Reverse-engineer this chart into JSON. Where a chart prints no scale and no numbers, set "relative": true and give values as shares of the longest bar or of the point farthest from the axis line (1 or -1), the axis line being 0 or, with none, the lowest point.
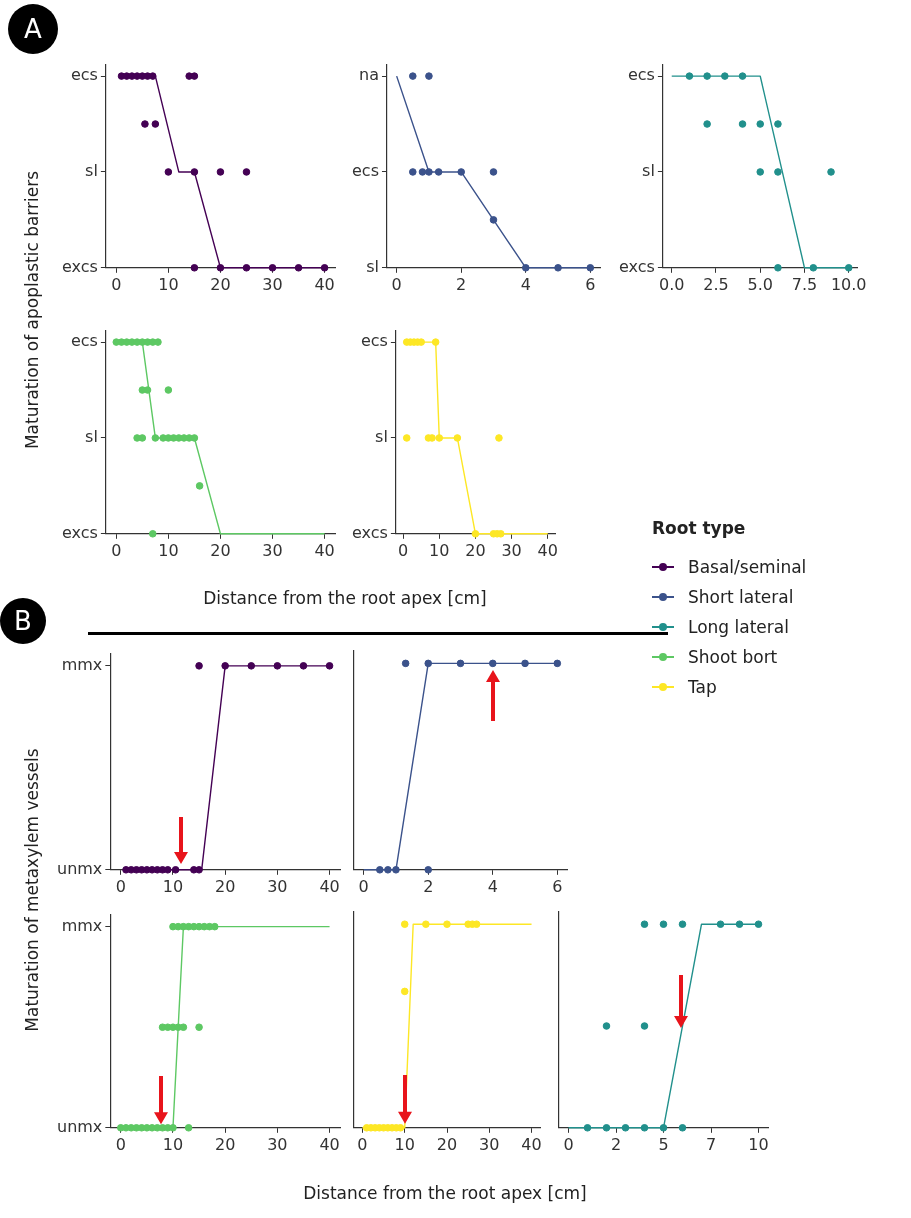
{
  "chart_data": [
    {
      "type": "scatter",
      "relative": true,
      "title": "A",
      "annotations": [
        "excs",
        "sl",
        "ecs"
      ],
      "ylabel": "Maturation of apoplastic barriers",
      "marker": "circle",
      "xlim": [
        -2,
        42
      ],
      "xticks": [
        0,
        10,
        20,
        30,
        40
      ],
      "series": [
        {
          "name": "Basal/seminal",
          "type": "scatter",
          "color": "#440154",
          "x": [
            1,
            2,
            3,
            4,
            5,
            6,
            7,
            14,
            15,
            5.5,
            7.5,
            10,
            15,
            20,
            25,
            15,
            20,
            25,
            30,
            35,
            40
          ],
          "values": [
            1,
            1,
            1,
            1,
            1,
            1,
            1,
            1,
            1,
            0.75,
            0.75,
            0.5,
            0.5,
            0.5,
            0.5,
            0,
            0,
            0,
            0,
            0,
            0
          ]
        },
        {
          "type": "line",
          "marker": "none",
          "color": "#440154",
          "x": [
            1,
            7.5,
            12,
            15,
            20,
            40
          ],
          "values": [
            1,
            1,
            0.5,
            0.5,
            0,
            0
          ]
        }
      ]
    },
    {
      "type": "scatter",
      "relative": true,
      "annotations": [
        "sl",
        "ecs",
        "na"
      ],
      "marker": "circle",
      "xlim": [
        -0.3,
        6.3
      ],
      "xticks": [
        0,
        2,
        4,
        6
      ],
      "series": [
        {
          "name": "Short lateral",
          "type": "scatter",
          "color": "#3b528b",
          "x": [
            0.5,
            1,
            0.5,
            0.8,
            1,
            1.3,
            2,
            3,
            3,
            4,
            5,
            6
          ],
          "values": [
            1,
            1,
            0.5,
            0.5,
            0.5,
            0.5,
            0.5,
            0.5,
            0.25,
            0,
            0,
            0
          ]
        },
        {
          "type": "line",
          "marker": "none",
          "color": "#3b528b",
          "x": [
            0,
            1,
            2,
            4,
            6
          ],
          "values": [
            1,
            0.5,
            0.5,
            0,
            0
          ]
        }
      ]
    },
    {
      "type": "scatter",
      "relative": true,
      "annotations": [
        "excs",
        "sl",
        "ecs"
      ],
      "marker": "circle",
      "xlim": [
        -0.5,
        10.5
      ],
      "xticks": [
        {
          "value": 0,
          "label": "0.0"
        },
        {
          "value": 2.5,
          "label": "2.5"
        },
        {
          "value": 5,
          "label": "5.0"
        },
        {
          "value": 7.5,
          "label": "7.5"
        },
        {
          "value": 10,
          "label": "10.0"
        }
      ],
      "series": [
        {
          "name": "Long lateral",
          "type": "scatter",
          "color": "#21908c",
          "x": [
            1,
            2,
            3,
            4,
            2,
            4,
            5,
            6,
            5,
            6,
            9,
            6,
            8,
            10
          ],
          "values": [
            1,
            1,
            1,
            1,
            0.75,
            0.75,
            0.75,
            0.75,
            0.5,
            0.5,
            0.5,
            0,
            0,
            0
          ]
        },
        {
          "type": "line",
          "marker": "none",
          "color": "#21908c",
          "x": [
            0,
            5,
            7.5,
            10
          ],
          "values": [
            1,
            1,
            0,
            0
          ]
        }
      ]
    },
    {
      "type": "scatter",
      "relative": true,
      "annotations": [
        "excs",
        "sl",
        "ecs"
      ],
      "xlabel": "Distance from the root apex [cm]",
      "marker": "circle",
      "xlim": [
        -2,
        42
      ],
      "xticks": [
        0,
        10,
        20,
        30,
        40
      ],
      "series": [
        {
          "name": "Shoot bort",
          "type": "scatter",
          "color": "#5dc863",
          "x": [
            0,
            1,
            2,
            3,
            4,
            5,
            6,
            7,
            8,
            5,
            6,
            10,
            4,
            5,
            7.5,
            9,
            10,
            11,
            12,
            13,
            14,
            15,
            16,
            7
          ],
          "values": [
            1,
            1,
            1,
            1,
            1,
            1,
            1,
            1,
            1,
            0.75,
            0.75,
            0.75,
            0.5,
            0.5,
            0.5,
            0.5,
            0.5,
            0.5,
            0.5,
            0.5,
            0.5,
            0.5,
            0.25,
            0
          ]
        },
        {
          "type": "line",
          "marker": "none",
          "color": "#5dc863",
          "x": [
            5,
            7.5,
            15,
            20,
            40
          ],
          "values": [
            1,
            0.5,
            0.5,
            0,
            0
          ]
        }
      ]
    },
    {
      "type": "scatter",
      "relative": true,
      "annotations": [
        "excs",
        "sl",
        "ecs"
      ],
      "marker": "circle",
      "xlim": [
        -2,
        42
      ],
      "xticks": [
        0,
        10,
        20,
        30,
        40
      ],
      "series": [
        {
          "name": "Tap",
          "type": "scatter",
          "color": "#fde725",
          "x": [
            1,
            2,
            3,
            4,
            5,
            9,
            1,
            7,
            8,
            10,
            15,
            26.5,
            20,
            25,
            26,
            27
          ],
          "values": [
            1,
            1,
            1,
            1,
            1,
            1,
            0.5,
            0.5,
            0.5,
            0.5,
            0.5,
            0.5,
            0,
            0,
            0,
            0
          ]
        },
        {
          "type": "line",
          "marker": "none",
          "color": "#fde725",
          "x": [
            1,
            9,
            10,
            15,
            20,
            40
          ],
          "values": [
            1,
            1,
            0.5,
            0.5,
            0,
            0
          ]
        }
      ]
    },
    {
      "type": "scatter",
      "relative": true,
      "title": "B",
      "annotations": [
        "unmx",
        "mmx"
      ],
      "ylabel": "Maturation of metaxylem vessels",
      "marker": "circle",
      "xlim": [
        -2,
        42
      ],
      "xticks": [
        0,
        10,
        20,
        30,
        40
      ],
      "series": [
        {
          "name": "Basal/seminal",
          "type": "scatter",
          "color": "#440154",
          "x": [
            15,
            20,
            25,
            30,
            35,
            40,
            1,
            2,
            3,
            4,
            5,
            6,
            7,
            8,
            9,
            10.5,
            14,
            15
          ],
          "values": [
            1,
            1,
            1,
            1,
            1,
            1,
            0,
            0,
            0,
            0,
            0,
            0,
            0,
            0,
            0,
            0,
            0,
            0
          ]
        },
        {
          "type": "line",
          "marker": "none",
          "color": "#440154",
          "x": [
            1,
            15.5,
            20,
            40
          ],
          "values": [
            0,
            0,
            1,
            1
          ]
        }
      ]
    },
    {
      "type": "scatter",
      "relative": true,
      "legend_title": "Root type",
      "legend": "right",
      "marker": "circle",
      "xlim": [
        -0.3,
        6.3
      ],
      "xticks": [
        0,
        2,
        4,
        6
      ],
      "series": [
        {
          "name": "Short lateral",
          "type": "scatter",
          "color": "#3b528b",
          "x": [
            1.3,
            2,
            3,
            4,
            5,
            6,
            0.5,
            0.75,
            1,
            2
          ],
          "values": [
            1,
            1,
            1,
            1,
            1,
            1,
            0,
            0,
            0,
            0
          ]
        },
        {
          "type": "line",
          "marker": "none",
          "color": "#3b528b",
          "x": [
            0,
            1,
            2,
            6
          ],
          "values": [
            0,
            0,
            1,
            1
          ]
        }
      ]
    },
    {
      "type": "scatter",
      "relative": true,
      "annotations": [
        "unmx",
        "mmx"
      ],
      "xlabel": "Distance from the root apex [cm]",
      "marker": "circle",
      "xlim": [
        -2,
        42
      ],
      "xticks": [
        0,
        10,
        20,
        30,
        40
      ],
      "series": [
        {
          "name": "Shoot bort",
          "type": "scatter",
          "color": "#5dc863",
          "x": [
            10,
            11,
            12,
            13,
            14,
            15,
            16,
            17,
            18,
            8,
            9,
            10,
            11,
            12,
            15,
            0,
            1,
            2,
            3,
            4,
            5,
            6,
            7,
            8,
            9,
            10,
            13
          ],
          "values": [
            1,
            1,
            1,
            1,
            1,
            1,
            1,
            1,
            1,
            0.5,
            0.5,
            0.5,
            0.5,
            0.5,
            0.5,
            0,
            0,
            0,
            0,
            0,
            0,
            0,
            0,
            0,
            0,
            0,
            0
          ]
        },
        {
          "type": "line",
          "marker": "none",
          "color": "#5dc863",
          "x": [
            0,
            10,
            12,
            40
          ],
          "values": [
            0,
            0,
            1,
            1
          ]
        }
      ]
    },
    {
      "type": "scatter",
      "relative": true,
      "marker": "circle",
      "xlim": [
        -2,
        42
      ],
      "xticks": [
        0,
        10,
        20,
        30,
        40
      ],
      "series": [
        {
          "name": "Tap",
          "type": "scatter",
          "color": "#fde725",
          "x": [
            10,
            15,
            20,
            25,
            26,
            27,
            10,
            1,
            2,
            3,
            4,
            5,
            6,
            7,
            8,
            9
          ],
          "values": [
            1,
            1,
            1,
            1,
            1,
            1,
            0.67,
            0,
            0,
            0,
            0,
            0,
            0,
            0,
            0,
            0
          ]
        },
        {
          "type": "line",
          "marker": "none",
          "color": "#fde725",
          "x": [
            0,
            10,
            12,
            40
          ],
          "values": [
            0,
            0,
            1,
            1
          ]
        }
      ]
    },
    {
      "type": "scatter",
      "relative": true,
      "marker": "circle",
      "xlim": [
        -0.5,
        10.5
      ],
      "xticks": [
        {
          "value": 0,
          "label": "0"
        },
        {
          "value": 2.5,
          "label": "2"
        },
        {
          "value": 5,
          "label": "5"
        },
        {
          "value": 7.5,
          "label": "7"
        },
        {
          "value": 10,
          "label": "10"
        }
      ],
      "series": [
        {
          "name": "Long lateral",
          "type": "scatter",
          "color": "#21908c",
          "x": [
            4,
            5,
            6,
            8,
            9,
            10,
            2,
            4,
            1,
            2,
            3,
            4,
            5,
            6
          ],
          "values": [
            1,
            1,
            1,
            1,
            1,
            1,
            0.5,
            0.5,
            0,
            0,
            0,
            0,
            0,
            0
          ]
        },
        {
          "type": "line",
          "marker": "none",
          "color": "#21908c",
          "x": [
            0,
            5,
            7,
            10
          ],
          "values": [
            0,
            0,
            1,
            1
          ]
        }
      ]
    }
  ]
}
